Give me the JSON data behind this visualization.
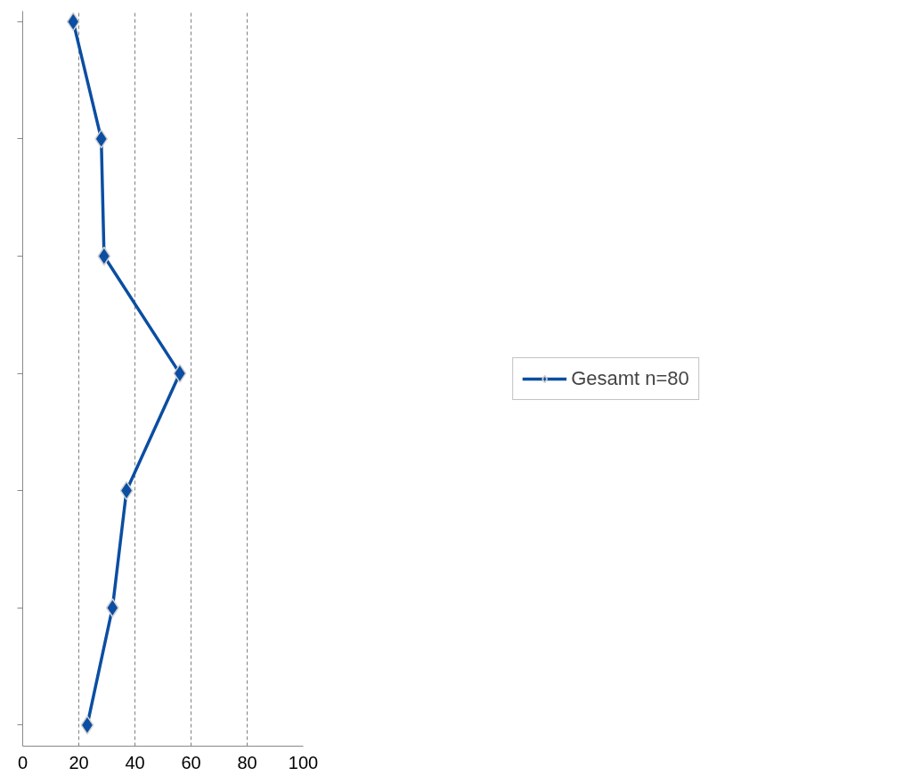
{
  "chart_data": {
    "type": "line",
    "orientation": "horizontal",
    "categories": [
      null,
      null,
      null,
      null,
      null,
      null,
      null
    ],
    "series": [
      {
        "name": "Gesamt n=80",
        "color": "#0b4ea2",
        "values": [
          18,
          28,
          29,
          56,
          37,
          32,
          23
        ]
      }
    ],
    "xlim": [
      0,
      100
    ],
    "xticks": [
      0,
      20,
      40,
      60,
      80,
      100
    ],
    "grid": "x",
    "marker": "diamond",
    "line_style": "solid",
    "legend": "right"
  }
}
